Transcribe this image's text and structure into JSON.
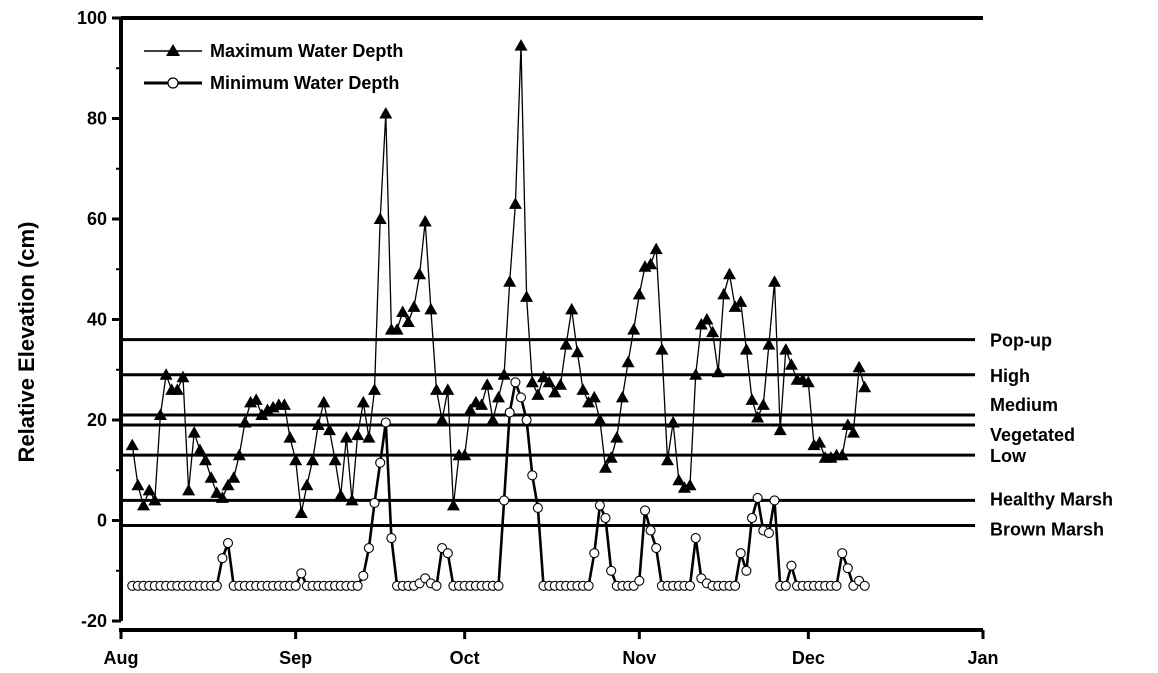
{
  "chart_data": {
    "type": "line",
    "title": "",
    "xlabel": "",
    "ylabel": "Relative Elevation (cm)",
    "x_ticks": [
      "Aug",
      "Sep",
      "Oct",
      "Nov",
      "Dec",
      "Jan"
    ],
    "y_ticks": [
      "-20",
      "0",
      "20",
      "40",
      "60",
      "80",
      "100"
    ],
    "xlim": [
      "Aug 1",
      "Jan 1"
    ],
    "ylim": [
      -20,
      100
    ],
    "grid": false,
    "legend_position": "top-left",
    "reference_lines": [
      {
        "label": "Pop-up",
        "value": 36
      },
      {
        "label": "High",
        "value": 29
      },
      {
        "label": "Medium",
        "value": 21
      },
      {
        "label": "Vegetated",
        "value": 19
      },
      {
        "label": "Low",
        "value": 13
      },
      {
        "label": "Healthy Marsh",
        "value": 4
      },
      {
        "label": "Brown Marsh",
        "value": -1
      }
    ],
    "series": [
      {
        "name": "Maximum Water Depth",
        "marker": "filled-triangle",
        "color": "#000000",
        "points": [
          [
            "Aug 3",
            15
          ],
          [
            "Aug 4",
            7
          ],
          [
            "Aug 5",
            3
          ],
          [
            "Aug 6",
            6
          ],
          [
            "Aug 7",
            4
          ],
          [
            "Aug 8",
            21
          ],
          [
            "Aug 9",
            29
          ],
          [
            "Aug 10",
            26
          ],
          [
            "Aug 11",
            26
          ],
          [
            "Aug 12",
            28.5
          ],
          [
            "Aug 13",
            6
          ],
          [
            "Aug 14",
            17.5
          ],
          [
            "Aug 15",
            14
          ],
          [
            "Aug 16",
            12
          ],
          [
            "Aug 17",
            8.5
          ],
          [
            "Aug 18",
            5.5
          ],
          [
            "Aug 19",
            4.5
          ],
          [
            "Aug 20",
            7
          ],
          [
            "Aug 21",
            8.5
          ],
          [
            "Aug 22",
            13
          ],
          [
            "Aug 23",
            19.5
          ],
          [
            "Aug 24",
            23.5
          ],
          [
            "Aug 25",
            24
          ],
          [
            "Aug 26",
            21
          ],
          [
            "Aug 27",
            22
          ],
          [
            "Aug 28",
            22.5
          ],
          [
            "Aug 29",
            23
          ],
          [
            "Aug 30",
            23
          ],
          [
            "Aug 31",
            16.5
          ],
          [
            "Sep 1",
            12
          ],
          [
            "Sep 2",
            1.5
          ],
          [
            "Sep 3",
            7
          ],
          [
            "Sep 4",
            12
          ],
          [
            "Sep 5",
            19
          ],
          [
            "Sep 6",
            23.5
          ],
          [
            "Sep 7",
            18
          ],
          [
            "Sep 8",
            12
          ],
          [
            "Sep 9",
            5
          ],
          [
            "Sep 10",
            16.5
          ],
          [
            "Sep 11",
            4
          ],
          [
            "Sep 12",
            17
          ],
          [
            "Sep 13",
            23.5
          ],
          [
            "Sep 14",
            16.5
          ],
          [
            "Sep 15",
            26
          ],
          [
            "Sep 16",
            60
          ],
          [
            "Sep 17",
            81
          ],
          [
            "Sep 18",
            38
          ],
          [
            "Sep 19",
            38
          ],
          [
            "Sep 20",
            41.5
          ],
          [
            "Sep 21",
            39.5
          ],
          [
            "Sep 22",
            42.5
          ],
          [
            "Sep 23",
            49
          ],
          [
            "Sep 24",
            59.5
          ],
          [
            "Sep 25",
            42
          ],
          [
            "Sep 26",
            26
          ],
          [
            "Sep 27",
            20
          ],
          [
            "Sep 28",
            26
          ],
          [
            "Sep 29",
            3
          ],
          [
            "Sep 30",
            13
          ],
          [
            "Oct 1",
            13
          ],
          [
            "Oct 2",
            22
          ],
          [
            "Oct 3",
            23.5
          ],
          [
            "Oct 4",
            23
          ],
          [
            "Oct 5",
            27
          ],
          [
            "Oct 6",
            20
          ],
          [
            "Oct 7",
            24.5
          ],
          [
            "Oct 8",
            29
          ],
          [
            "Oct 9",
            47.5
          ],
          [
            "Oct 10",
            63
          ],
          [
            "Oct 11",
            94.5
          ],
          [
            "Oct 12",
            44.5
          ],
          [
            "Oct 13",
            27.5
          ],
          [
            "Oct 14",
            25
          ],
          [
            "Oct 15",
            28.5
          ],
          [
            "Oct 16",
            27.5
          ],
          [
            "Oct 17",
            25.5
          ],
          [
            "Oct 18",
            27
          ],
          [
            "Oct 19",
            35
          ],
          [
            "Oct 20",
            42
          ],
          [
            "Oct 21",
            33.5
          ],
          [
            "Oct 22",
            26
          ],
          [
            "Oct 23",
            23.5
          ],
          [
            "Oct 24",
            24.5
          ],
          [
            "Oct 25",
            20
          ],
          [
            "Oct 26",
            10.5
          ],
          [
            "Oct 27",
            12.5
          ],
          [
            "Oct 28",
            16.5
          ],
          [
            "Oct 29",
            24.5
          ],
          [
            "Oct 30",
            31.5
          ],
          [
            "Oct 31",
            38
          ],
          [
            "Nov 1",
            45
          ],
          [
            "Nov 2",
            50.5
          ],
          [
            "Nov 3",
            51
          ],
          [
            "Nov 4",
            54
          ],
          [
            "Nov 5",
            34
          ],
          [
            "Nov 6",
            12
          ],
          [
            "Nov 7",
            19.5
          ],
          [
            "Nov 8",
            8
          ],
          [
            "Nov 9",
            6.5
          ],
          [
            "Nov 10",
            7
          ],
          [
            "Nov 11",
            29
          ],
          [
            "Nov 12",
            39
          ],
          [
            "Nov 13",
            40
          ],
          [
            "Nov 14",
            37.5
          ],
          [
            "Nov 15",
            29.5
          ],
          [
            "Nov 16",
            45
          ],
          [
            "Nov 17",
            49
          ],
          [
            "Nov 18",
            42.5
          ],
          [
            "Nov 19",
            43.5
          ],
          [
            "Nov 20",
            34
          ],
          [
            "Nov 21",
            24
          ],
          [
            "Nov 22",
            20.5
          ],
          [
            "Nov 23",
            23
          ],
          [
            "Nov 24",
            35
          ],
          [
            "Nov 25",
            47.5
          ],
          [
            "Nov 26",
            18
          ],
          [
            "Nov 27",
            34
          ],
          [
            "Nov 28",
            31
          ],
          [
            "Nov 29",
            28
          ],
          [
            "Nov 30",
            28
          ],
          [
            "Dec 1",
            27.5
          ],
          [
            "Dec 2",
            15
          ],
          [
            "Dec 3",
            15.5
          ],
          [
            "Dec 4",
            12.5
          ],
          [
            "Dec 5",
            12.5
          ],
          [
            "Dec 6",
            13
          ],
          [
            "Dec 7",
            13
          ],
          [
            "Dec 8",
            19
          ],
          [
            "Dec 9",
            17.5
          ],
          [
            "Dec 10",
            30.5
          ],
          [
            "Dec 11",
            26.5
          ]
        ]
      },
      {
        "name": "Minimum Water Depth",
        "marker": "open-circle",
        "color": "#000000",
        "points": [
          [
            "Aug 3",
            -13
          ],
          [
            "Aug 4",
            -13
          ],
          [
            "Aug 5",
            -13
          ],
          [
            "Aug 6",
            -13
          ],
          [
            "Aug 7",
            -13
          ],
          [
            "Aug 8",
            -13
          ],
          [
            "Aug 9",
            -13
          ],
          [
            "Aug 10",
            -13
          ],
          [
            "Aug 11",
            -13
          ],
          [
            "Aug 12",
            -13
          ],
          [
            "Aug 13",
            -13
          ],
          [
            "Aug 14",
            -13
          ],
          [
            "Aug 15",
            -13
          ],
          [
            "Aug 16",
            -13
          ],
          [
            "Aug 17",
            -13
          ],
          [
            "Aug 18",
            -13
          ],
          [
            "Aug 19",
            -7.5
          ],
          [
            "Aug 20",
            -4.5
          ],
          [
            "Aug 21",
            -13
          ],
          [
            "Aug 22",
            -13
          ],
          [
            "Aug 23",
            -13
          ],
          [
            "Aug 24",
            -13
          ],
          [
            "Aug 25",
            -13
          ],
          [
            "Aug 26",
            -13
          ],
          [
            "Aug 27",
            -13
          ],
          [
            "Aug 28",
            -13
          ],
          [
            "Aug 29",
            -13
          ],
          [
            "Aug 30",
            -13
          ],
          [
            "Aug 31",
            -13
          ],
          [
            "Sep 1",
            -13
          ],
          [
            "Sep 2",
            -10.5
          ],
          [
            "Sep 3",
            -13
          ],
          [
            "Sep 4",
            -13
          ],
          [
            "Sep 5",
            -13
          ],
          [
            "Sep 6",
            -13
          ],
          [
            "Sep 7",
            -13
          ],
          [
            "Sep 8",
            -13
          ],
          [
            "Sep 9",
            -13
          ],
          [
            "Sep 10",
            -13
          ],
          [
            "Sep 11",
            -13
          ],
          [
            "Sep 12",
            -13
          ],
          [
            "Sep 13",
            -11
          ],
          [
            "Sep 14",
            -5.5
          ],
          [
            "Sep 15",
            3.5
          ],
          [
            "Sep 16",
            11.5
          ],
          [
            "Sep 17",
            19.5
          ],
          [
            "Sep 18",
            -3.5
          ],
          [
            "Sep 19",
            -13
          ],
          [
            "Sep 20",
            -13
          ],
          [
            "Sep 21",
            -13
          ],
          [
            "Sep 22",
            -13
          ],
          [
            "Sep 23",
            -12.5
          ],
          [
            "Sep 24",
            -11.5
          ],
          [
            "Sep 25",
            -12.5
          ],
          [
            "Sep 26",
            -13
          ],
          [
            "Sep 27",
            -5.5
          ],
          [
            "Sep 28",
            -6.5
          ],
          [
            "Sep 29",
            -13
          ],
          [
            "Sep 30",
            -13
          ],
          [
            "Oct 1",
            -13
          ],
          [
            "Oct 2",
            -13
          ],
          [
            "Oct 3",
            -13
          ],
          [
            "Oct 4",
            -13
          ],
          [
            "Oct 5",
            -13
          ],
          [
            "Oct 6",
            -13
          ],
          [
            "Oct 7",
            -13
          ],
          [
            "Oct 8",
            4
          ],
          [
            "Oct 9",
            21.5
          ],
          [
            "Oct 10",
            27.5
          ],
          [
            "Oct 11",
            24.5
          ],
          [
            "Oct 12",
            20
          ],
          [
            "Oct 13",
            9
          ],
          [
            "Oct 14",
            2.5
          ],
          [
            "Oct 15",
            -13
          ],
          [
            "Oct 16",
            -13
          ],
          [
            "Oct 17",
            -13
          ],
          [
            "Oct 18",
            -13
          ],
          [
            "Oct 19",
            -13
          ],
          [
            "Oct 20",
            -13
          ],
          [
            "Oct 21",
            -13
          ],
          [
            "Oct 22",
            -13
          ],
          [
            "Oct 23",
            -13
          ],
          [
            "Oct 24",
            -6.5
          ],
          [
            "Oct 25",
            3
          ],
          [
            "Oct 26",
            0.5
          ],
          [
            "Oct 27",
            -10
          ],
          [
            "Oct 28",
            -13
          ],
          [
            "Oct 29",
            -13
          ],
          [
            "Oct 30",
            -13
          ],
          [
            "Oct 31",
            -13
          ],
          [
            "Nov 1",
            -12
          ],
          [
            "Nov 2",
            2
          ],
          [
            "Nov 3",
            -2
          ],
          [
            "Nov 4",
            -5.5
          ],
          [
            "Nov 5",
            -13
          ],
          [
            "Nov 6",
            -13
          ],
          [
            "Nov 7",
            -13
          ],
          [
            "Nov 8",
            -13
          ],
          [
            "Nov 9",
            -13
          ],
          [
            "Nov 10",
            -13
          ],
          [
            "Nov 11",
            -3.5
          ],
          [
            "Nov 12",
            -11.5
          ],
          [
            "Nov 13",
            -12.5
          ],
          [
            "Nov 14",
            -13
          ],
          [
            "Nov 15",
            -13
          ],
          [
            "Nov 16",
            -13
          ],
          [
            "Nov 17",
            -13
          ],
          [
            "Nov 18",
            -13
          ],
          [
            "Nov 19",
            -6.5
          ],
          [
            "Nov 20",
            -10
          ],
          [
            "Nov 21",
            0.5
          ],
          [
            "Nov 22",
            4.5
          ],
          [
            "Nov 23",
            -2
          ],
          [
            "Nov 24",
            -2.5
          ],
          [
            "Nov 25",
            4
          ],
          [
            "Nov 26",
            -13
          ],
          [
            "Nov 27",
            -13
          ],
          [
            "Nov 28",
            -9
          ],
          [
            "Nov 29",
            -13
          ],
          [
            "Nov 30",
            -13
          ],
          [
            "Dec 1",
            -13
          ],
          [
            "Dec 2",
            -13
          ],
          [
            "Dec 3",
            -13
          ],
          [
            "Dec 4",
            -13
          ],
          [
            "Dec 5",
            -13
          ],
          [
            "Dec 6",
            -13
          ],
          [
            "Dec 7",
            -6.5
          ],
          [
            "Dec 8",
            -9.5
          ],
          [
            "Dec 9",
            -13
          ],
          [
            "Dec 10",
            -12
          ],
          [
            "Dec 11",
            -13
          ]
        ]
      }
    ]
  }
}
